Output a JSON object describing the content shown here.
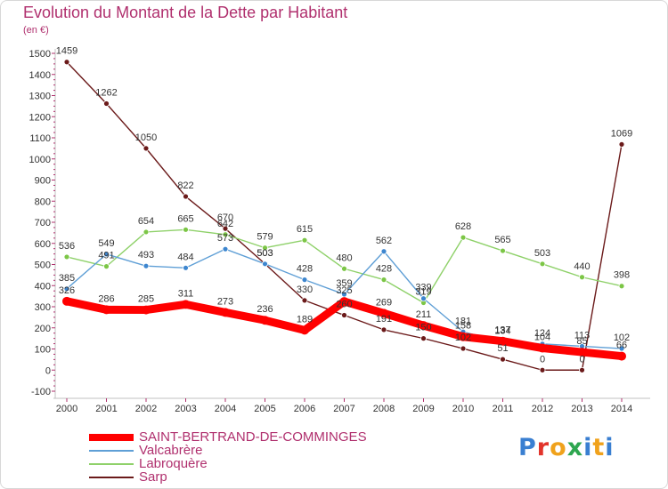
{
  "header": {
    "title": "Evolution du Montant de la Dette par Habitant",
    "unit": "(en €)"
  },
  "logo": {
    "text": "Proxiti",
    "colors": [
      "#3a7fd1",
      "#e2342b",
      "#f0a21c",
      "#2da64f",
      "#3a7fd1",
      "#f0a21c",
      "#3a7fd1"
    ]
  },
  "chart_data": {
    "type": "line",
    "x": [
      "2000",
      "2001",
      "2002",
      "2003",
      "2004",
      "2005",
      "2006",
      "2007",
      "2008",
      "2009",
      "2010",
      "2011",
      "2012",
      "2013",
      "2014"
    ],
    "ylim": [
      -100,
      1500
    ],
    "yticks": [
      -100,
      0,
      100,
      200,
      300,
      400,
      500,
      600,
      700,
      800,
      900,
      1000,
      1100,
      1200,
      1300,
      1400,
      1500
    ],
    "grid": false,
    "legend_position": "bottom-left",
    "series": [
      {
        "name": "Sarp",
        "color": "#6b1a1a",
        "marker": "#6b1a1a",
        "values": [
          1459,
          1262,
          1050,
          822,
          670,
          503,
          330,
          260,
          191,
          150,
          102,
          51,
          0,
          0,
          1069
        ],
        "labels": [
          "1459",
          "1262",
          "1050",
          "822",
          "670",
          "503",
          "330",
          "260",
          "191",
          "150",
          "102",
          "51",
          "0",
          "0",
          "1069"
        ]
      },
      {
        "name": "Labroquère",
        "color": "#8fd16a",
        "marker": "#7cc646",
        "values": [
          536,
          491,
          654,
          665,
          642,
          579,
          615,
          480,
          428,
          319,
          628,
          565,
          503,
          440,
          398
        ],
        "labels": [
          "536",
          "491",
          "654",
          "665",
          "642",
          "579",
          "615",
          "480",
          "428",
          "319",
          "628",
          "565",
          "503",
          "440",
          "398"
        ]
      },
      {
        "name": "Valcabrère",
        "color": "#5f9fd6",
        "marker": "#3d86cf",
        "values": [
          385,
          549,
          493,
          484,
          573,
          503,
          428,
          359,
          562,
          339,
          181,
          134,
          124,
          113,
          102
        ],
        "labels": [
          "385",
          "549",
          "493",
          "484",
          "573",
          "503",
          "428",
          "359",
          "562",
          "339",
          "181",
          "134",
          "124",
          "113",
          "102"
        ]
      },
      {
        "name": "SAINT-BERTRAND-DE-COMMINGES",
        "color": "#ff0000",
        "marker": "#ff0000",
        "values": [
          326,
          286,
          285,
          311,
          273,
          236,
          189,
          325,
          269,
          211,
          158,
          137,
          104,
          85,
          66
        ],
        "labels": [
          "326",
          "286",
          "285",
          "311",
          "273",
          "236",
          "189",
          "325",
          "269",
          "211",
          "158",
          "137",
          "104",
          "85",
          "66"
        ]
      }
    ]
  },
  "legend": [
    {
      "name": "SAINT-BERTRAND-DE-COMMINGES",
      "color": "#ff0000",
      "thick": true
    },
    {
      "name": "Valcabrère",
      "color": "#5f9fd6",
      "thick": false
    },
    {
      "name": "Labroquère",
      "color": "#8fd16a",
      "thick": false
    },
    {
      "name": "Sarp",
      "color": "#6b1a1a",
      "thick": false
    }
  ]
}
